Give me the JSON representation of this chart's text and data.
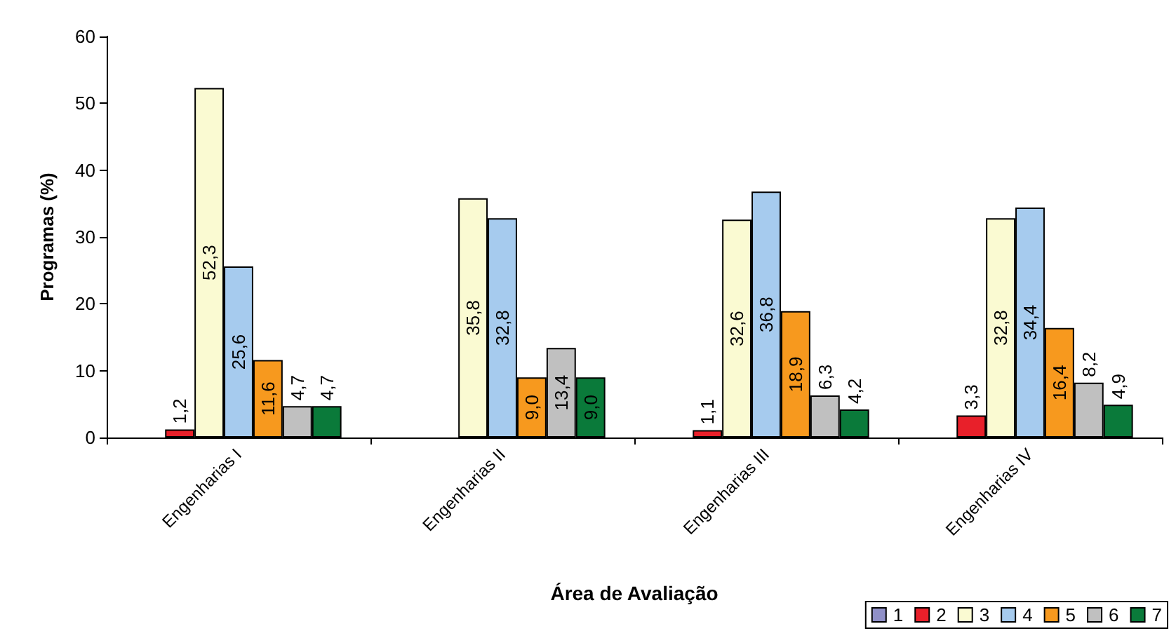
{
  "chart_data": {
    "type": "bar",
    "xlabel": "Área de Avaliação",
    "ylabel": "Programas (%)",
    "categories": [
      "Engenharias I",
      "Engenharias II",
      "Engenharias III",
      "Engenharias IV"
    ],
    "series": [
      {
        "name": "1",
        "color": "#9090c8",
        "values": [
          null,
          null,
          null,
          null
        ],
        "value_labels": [
          null,
          null,
          null,
          null
        ]
      },
      {
        "name": "2",
        "color": "#e8202a",
        "values": [
          1.2,
          null,
          1.1,
          3.3
        ],
        "value_labels": [
          "1,2",
          null,
          "1,1",
          "3,3"
        ]
      },
      {
        "name": "3",
        "color": "#fafad2",
        "values": [
          52.3,
          35.8,
          32.6,
          32.8
        ],
        "value_labels": [
          "52,3",
          "35,8",
          "32,6",
          "32,8"
        ]
      },
      {
        "name": "4",
        "color": "#a6cbee",
        "values": [
          25.6,
          32.8,
          36.8,
          34.4
        ],
        "value_labels": [
          "25,6",
          "32,8",
          "36,8",
          "34,4"
        ]
      },
      {
        "name": "5",
        "color": "#f7991e",
        "values": [
          11.6,
          9.0,
          18.9,
          16.4
        ],
        "value_labels": [
          "11,6",
          "9,0",
          "18,9",
          "16,4"
        ]
      },
      {
        "name": "6",
        "color": "#c0c0c0",
        "values": [
          4.7,
          13.4,
          6.3,
          8.2
        ],
        "value_labels": [
          "4,7",
          "13,4",
          "6,3",
          "8,2"
        ]
      },
      {
        "name": "7",
        "color": "#0a7a3a",
        "values": [
          4.7,
          9.0,
          4.2,
          4.9
        ],
        "value_labels": [
          "4,7",
          "9,0",
          "4,2",
          "4,9"
        ]
      }
    ],
    "ylim": [
      0,
      60
    ],
    "yticks": [
      0,
      10,
      20,
      30,
      40,
      50,
      60
    ],
    "grid": false,
    "legend": "bottom right"
  }
}
